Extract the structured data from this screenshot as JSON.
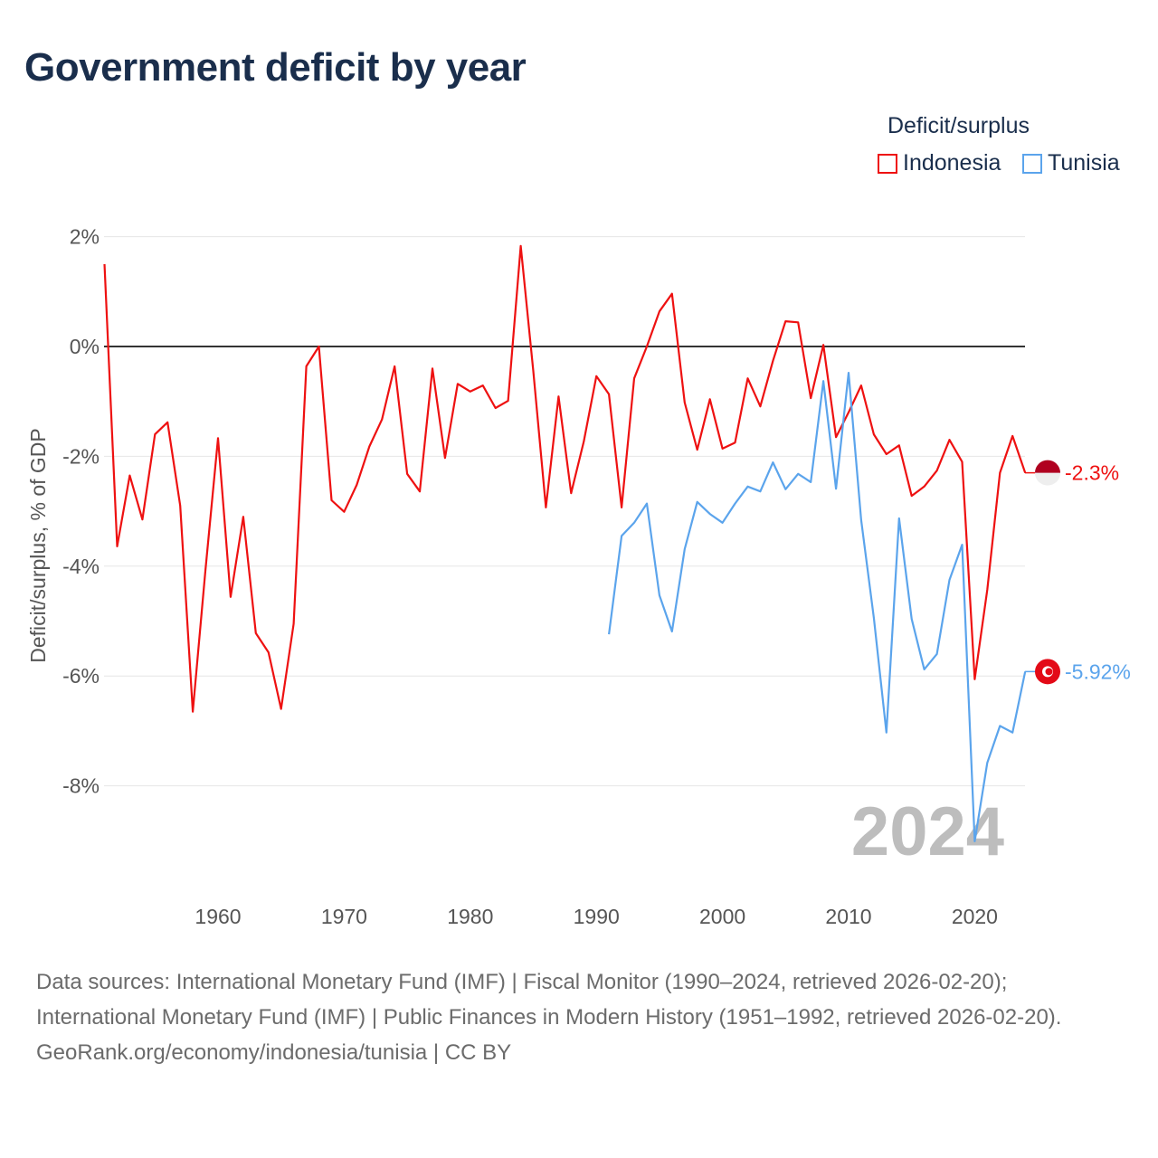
{
  "title": "Government deficit by year",
  "legend": {
    "title": "Deficit/surplus"
  },
  "year_watermark": "2024",
  "footer": {
    "sources": "Data sources: International Monetary Fund (IMF) | Fiscal Monitor (1990–2024, retrieved 2026-02-20); International Monetary Fund (IMF) | Public Finances in Modern History (1951–1992, retrieved 2026-02-20).",
    "credit": "GeoRank.org/economy/indonesia/tunisia | CC BY"
  },
  "chart_data": {
    "type": "line",
    "title": "Government deficit by year",
    "xlabel": "",
    "ylabel": "Deficit/surplus, % of GDP",
    "xlim": [
      1951,
      2024
    ],
    "ylim": [
      -9.5,
      2
    ],
    "x_ticks": [
      1960,
      1970,
      1980,
      1990,
      2000,
      2010,
      2020
    ],
    "y_ticks": [
      2,
      0,
      -2,
      -4,
      -6,
      -8
    ],
    "y_tick_labels": [
      "2%",
      "0%",
      "-2%",
      "-4%",
      "-6%",
      "-8%"
    ],
    "grid": true,
    "legend_position": "top-right",
    "series": [
      {
        "name": "Indonesia",
        "color": "#ee1111",
        "end_label": "-2.3%",
        "start_year": 1951,
        "values": [
          1.5,
          -3.64,
          -2.35,
          -3.15,
          -1.6,
          -1.38,
          -2.9,
          -6.65,
          -4.07,
          -1.67,
          -4.56,
          -3.1,
          -5.22,
          -5.57,
          -6.6,
          -5.05,
          -0.36,
          0,
          -2.8,
          -3.01,
          -2.52,
          -1.82,
          -1.33,
          -0.36,
          -2.32,
          -2.64,
          -0.4,
          -2.03,
          -0.68,
          -0.82,
          -0.71,
          -1.12,
          -0.99,
          1.83,
          -0.45,
          -2.93,
          -0.91,
          -2.67,
          -1.73,
          -0.54,
          -0.87,
          -2.93,
          -0.58,
          0,
          0.64,
          0.96,
          -1.02,
          -1.88,
          -0.96,
          -1.86,
          -1.75,
          -0.58,
          -1.09,
          -0.26,
          0.46,
          0.44,
          -0.94,
          0.03,
          -1.65,
          -1.2,
          -0.71,
          -1.6,
          -1.96,
          -1.8,
          -2.72,
          -2.55,
          -2.26,
          -1.7,
          -2.1,
          -6.06,
          -4.43,
          -2.3,
          -1.63,
          -2.3
        ]
      },
      {
        "name": "Tunisia",
        "color": "#5ba4ec",
        "end_label": "-5.92%",
        "start_year": 1991,
        "values": [
          -5.24,
          -3.45,
          -3.21,
          -2.86,
          -4.53,
          -5.19,
          -3.69,
          -2.83,
          -3.05,
          -3.21,
          -2.86,
          -2.55,
          -2.64,
          -2.11,
          -2.6,
          -2.32,
          -2.47,
          -0.63,
          -2.59,
          -0.48,
          -3.16,
          -4.94,
          -7.03,
          -3.13,
          -4.96,
          -5.88,
          -5.6,
          -4.25,
          -3.61,
          -9.01,
          -7.58,
          -6.91,
          -7.03,
          -5.92
        ]
      }
    ]
  }
}
